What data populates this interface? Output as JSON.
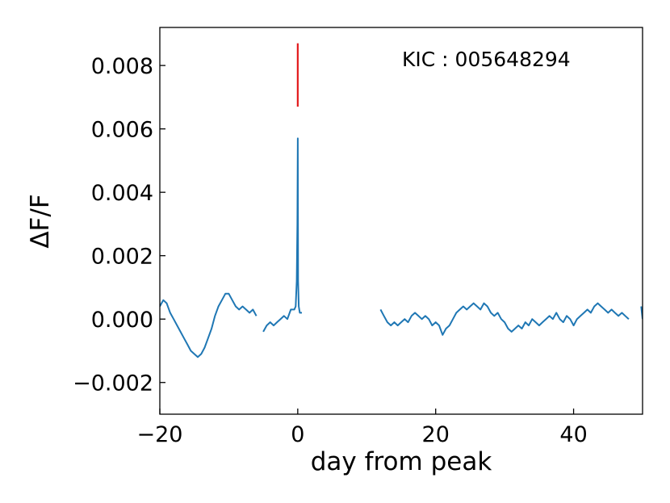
{
  "chart_data": {
    "type": "line",
    "xlabel": "day from peak",
    "ylabel": "ΔF/F",
    "annotation": "KIC : 005648294",
    "xlim": [
      -20,
      50
    ],
    "ylim": [
      -0.003,
      0.0092
    ],
    "x_ticks": [
      -20,
      0,
      20,
      40
    ],
    "x_tick_labels": [
      "−20",
      "0",
      "20",
      "40"
    ],
    "y_ticks": [
      -0.002,
      0.0,
      0.002,
      0.004,
      0.006,
      0.008
    ],
    "y_tick_labels": [
      "−0.002",
      "0.000",
      "0.002",
      "0.004",
      "0.006",
      "0.008"
    ],
    "grid": false,
    "colors": {
      "line": "#1f77b4",
      "marker": "#e31a1c"
    },
    "marker": {
      "x": 0,
      "y_from": 0.0067,
      "y_to": 0.0087
    },
    "segments": [
      {
        "x": [
          -20,
          -19.5,
          -19,
          -18.5,
          -18,
          -17.5,
          -17,
          -16.5,
          -16,
          -15.5,
          -15,
          -14.5,
          -14,
          -13.5,
          -13,
          -12.5,
          -12,
          -11.5,
          -11,
          -10.5,
          -10,
          -9.5,
          -9,
          -8.5,
          -8,
          -7.5,
          -7,
          -6.5,
          -6
        ],
        "y": [
          0.0004,
          0.0006,
          0.0005,
          0.0002,
          0.0,
          -0.0002,
          -0.0004,
          -0.0006,
          -0.0008,
          -0.001,
          -0.0011,
          -0.0012,
          -0.0011,
          -0.0009,
          -0.0006,
          -0.0003,
          0.0001,
          0.0004,
          0.0006,
          0.0008,
          0.0008,
          0.0006,
          0.0004,
          0.0003,
          0.0004,
          0.0003,
          0.0002,
          0.0003,
          0.0001
        ]
      },
      {
        "x": [
          -5,
          -4.5,
          -4,
          -3.5,
          -3,
          -2.5,
          -2,
          -1.5,
          -1,
          -0.5,
          -0.3,
          -0.15,
          -0.05,
          0,
          0.05,
          0.15,
          0.3,
          0.6
        ],
        "y": [
          -0.0004,
          -0.0002,
          -0.0001,
          -0.0002,
          -0.0001,
          0.0,
          0.0001,
          0.0,
          0.0003,
          0.0003,
          0.0004,
          0.0012,
          0.003,
          0.0057,
          0.0012,
          0.0004,
          0.0002,
          0.0002
        ]
      },
      {
        "x": [
          12,
          12.5,
          13,
          13.5,
          14,
          14.5,
          15,
          15.5,
          16,
          16.5,
          17,
          17.5,
          18,
          18.5,
          19,
          19.5,
          20,
          20.5,
          21,
          21.5,
          22,
          22.5,
          23,
          23.5,
          24,
          24.5,
          25,
          25.5,
          26,
          26.5,
          27,
          27.5,
          28,
          28.5,
          29,
          29.5,
          30,
          30.5,
          31,
          31.5,
          32,
          32.5,
          33,
          33.5,
          34,
          34.5,
          35,
          35.5,
          36,
          36.5,
          37,
          37.5,
          38,
          38.5,
          39,
          39.5,
          40,
          40.5,
          41,
          41.5,
          42,
          42.5,
          43,
          43.5,
          44,
          44.5,
          45,
          45.5,
          46,
          46.5,
          47,
          47.5,
          48
        ],
        "y": [
          0.0003,
          0.0001,
          -0.0001,
          -0.0002,
          -0.0001,
          -0.0002,
          -0.0001,
          0.0,
          -0.0001,
          0.0001,
          0.0002,
          0.0001,
          0.0,
          0.0001,
          0.0,
          -0.0002,
          -0.0001,
          -0.0002,
          -0.0005,
          -0.0003,
          -0.0002,
          0.0,
          0.0002,
          0.0003,
          0.0004,
          0.0003,
          0.0004,
          0.0005,
          0.0004,
          0.0003,
          0.0005,
          0.0004,
          0.0002,
          0.0001,
          0.0002,
          0.0,
          -0.0001,
          -0.0003,
          -0.0004,
          -0.0003,
          -0.0002,
          -0.0003,
          -0.0001,
          -0.0002,
          0.0,
          -0.0001,
          -0.0002,
          -0.0001,
          0.0,
          0.0001,
          0.0,
          0.0002,
          0.0,
          -0.0001,
          0.0001,
          0.0,
          -0.0002,
          0.0,
          0.0001,
          0.0002,
          0.0003,
          0.0002,
          0.0004,
          0.0005,
          0.0004,
          0.0003,
          0.0002,
          0.0003,
          0.0002,
          0.0001,
          0.0002,
          0.0001,
          0.0
        ]
      },
      {
        "x": [
          49.8,
          50
        ],
        "y": [
          0.0004,
          0.0
        ]
      }
    ]
  }
}
